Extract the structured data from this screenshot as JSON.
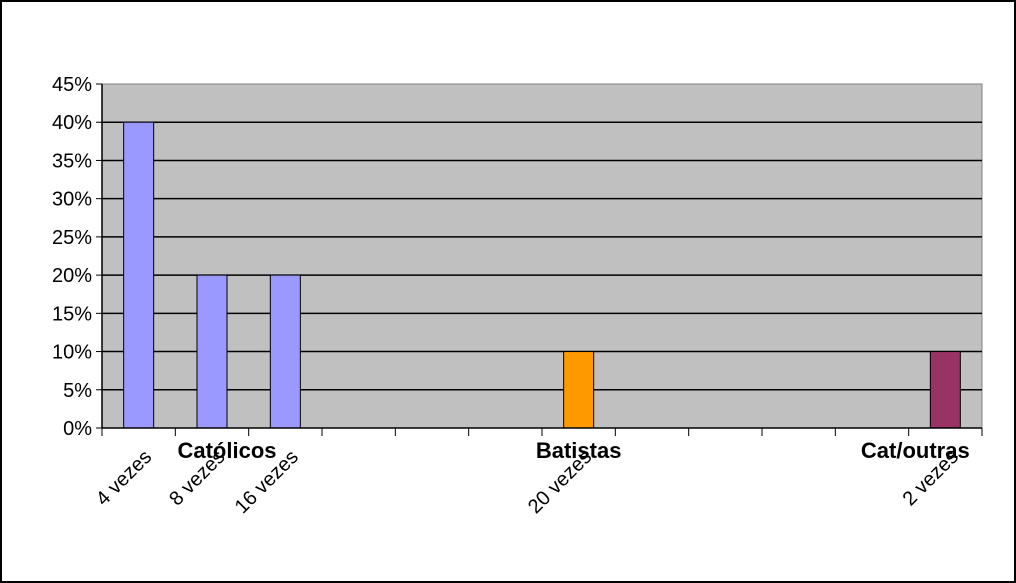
{
  "chart_data": {
    "type": "bar",
    "title": "",
    "xlabel": "",
    "ylabel": "",
    "ylim": [
      0,
      45
    ],
    "y_ticks": [
      "0%",
      "5%",
      "10%",
      "15%",
      "20%",
      "25%",
      "30%",
      "35%",
      "40%",
      "45%"
    ],
    "grid": true,
    "legend": "none",
    "colors": {
      "plot_background": "#c0c0c0",
      "gridline": "#000000",
      "catolicos": "#9999ff",
      "batistas": "#ff9900",
      "cat_outras": "#993366"
    },
    "groups": [
      {
        "name": "Católicos",
        "color": "#9999ff"
      },
      {
        "name": "Batistas",
        "color": "#ff9900"
      },
      {
        "name": "Cat/outras",
        "color": "#993366"
      }
    ],
    "bars": [
      {
        "label": "4 vezes",
        "value": 40,
        "group": 0
      },
      {
        "label": "8 vezes",
        "value": 20,
        "group": 0
      },
      {
        "label": "16 vezes",
        "value": 20,
        "group": 0
      },
      {
        "label": "20 vezes",
        "value": 10,
        "group": 1
      },
      {
        "label": "2 vezes",
        "value": 10,
        "group": 2
      }
    ]
  }
}
